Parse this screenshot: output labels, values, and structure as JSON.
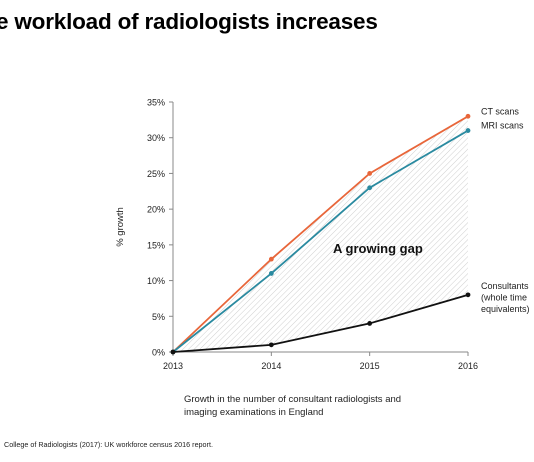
{
  "title": "e workload of radiologists increases",
  "caption_line1": "Growth in the number of consultant radiologists and",
  "caption_line2": "imaging examinations in England",
  "source": "College of Radiologists (2017): UK workforce census 2016 report.",
  "chart_data": {
    "type": "line",
    "x": [
      "2013",
      "2014",
      "2015",
      "2016"
    ],
    "ylabel": "% growth",
    "ylim": [
      0,
      35
    ],
    "yticks": [
      "0%",
      "5%",
      "10%",
      "15%",
      "20%",
      "25%",
      "30%",
      "35%"
    ],
    "grid": false,
    "legend": "right-end labels",
    "annotation": "A growing gap",
    "series": [
      {
        "name": "CT scans",
        "values": [
          0,
          13,
          25,
          33
        ],
        "color": "#e8663a"
      },
      {
        "name": "MRI scans",
        "values": [
          0,
          11,
          23,
          31
        ],
        "color": "#2a8aa0"
      },
      {
        "name": "Consultants\n(whole time\nequivalents)",
        "values": [
          0,
          1,
          4,
          8
        ],
        "color": "#111111"
      }
    ]
  }
}
